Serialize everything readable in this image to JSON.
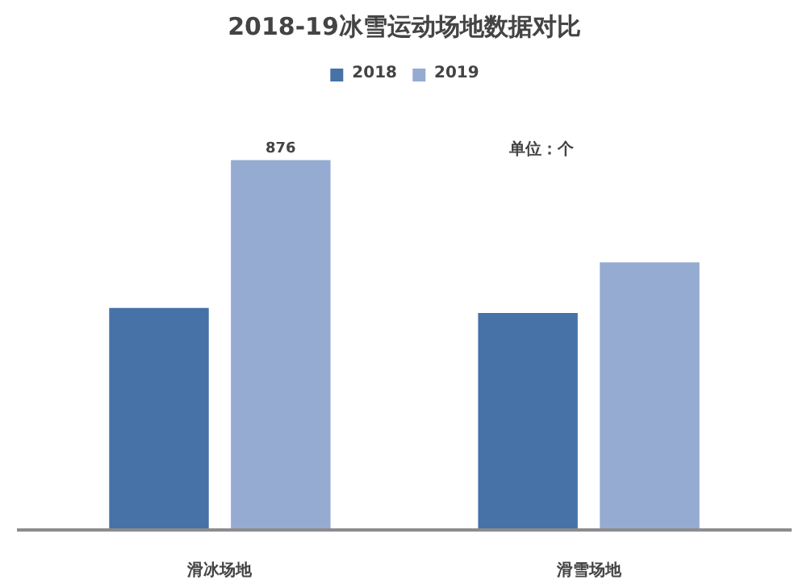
{
  "chart_data": {
    "type": "bar",
    "title": "2018-19冰雪运动场地数据对比",
    "categories": [
      "滑冰场地",
      "滑雪场地"
    ],
    "series": [
      {
        "name": "2018",
        "color": "#4672a8",
        "values": [
          526,
          514
        ]
      },
      {
        "name": "2019",
        "color": "#95abd1",
        "values": [
          876,
          634
        ],
        "value_labels": [
          "876",
          null
        ]
      }
    ],
    "annotations": [
      "单位：个"
    ],
    "legend": "top",
    "grid": false
  }
}
